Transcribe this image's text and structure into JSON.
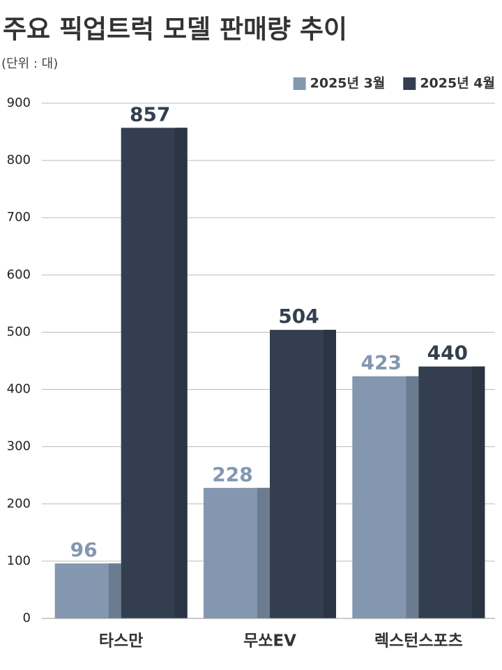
{
  "chart_data": {
    "type": "bar",
    "title": "주요 픽업트럭 모델 판매량 추이",
    "subtitle": "(단위 : 대)",
    "categories": [
      "타스만",
      "무쏘EV",
      "렉스턴스포츠"
    ],
    "series": [
      {
        "name": "2025년 3월",
        "color": "#8497b0",
        "values": [
          96,
          228,
          423
        ]
      },
      {
        "name": "2025년 4월",
        "color": "#333f50",
        "values": [
          857,
          504,
          440
        ]
      }
    ],
    "ylim": [
      0,
      900
    ],
    "yticks": [
      0,
      100,
      200,
      300,
      400,
      500,
      600,
      700,
      800,
      900
    ],
    "grid": true,
    "legend": "top-right"
  }
}
